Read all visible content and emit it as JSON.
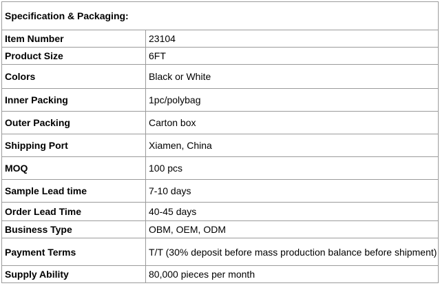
{
  "section_title": "Specification & Packaging:",
  "rows": [
    {
      "label": "Item Number",
      "value": "23104"
    },
    {
      "label": "Product Size",
      "value": "6FT"
    },
    {
      "label": "Colors",
      "value": "Black or White"
    },
    {
      "label": "Inner Packing",
      "value": "1pc/polybag"
    },
    {
      "label": "Outer Packing",
      "value": "Carton box"
    },
    {
      "label": "Shipping Port",
      "value": "Xiamen, China"
    },
    {
      "label": "MOQ",
      "value": "100 pcs"
    },
    {
      "label": "Sample Lead time",
      "value": "7-10 days"
    },
    {
      "label": "Order Lead Time",
      "value": "40-45 days"
    },
    {
      "label": "Business Type",
      "value": "OBM, OEM, ODM"
    },
    {
      "label": "Payment Terms",
      "value": "T/T (30% deposit before mass production balance before shipment)"
    },
    {
      "label": "Supply Ability",
      "value": "80,000 pieces per month"
    }
  ]
}
